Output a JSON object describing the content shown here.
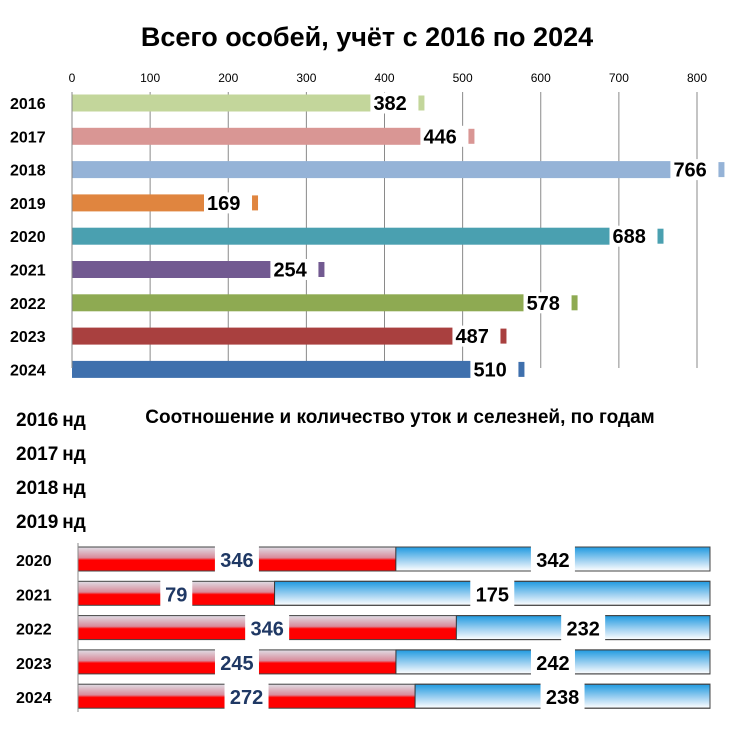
{
  "chart_data": [
    {
      "type": "bar",
      "orientation": "horizontal",
      "title": "Всего особей, учёт с 2016 по 2024",
      "categories": [
        "2016",
        "2017",
        "2018",
        "2019",
        "2020",
        "2021",
        "2022",
        "2023",
        "2024"
      ],
      "values": [
        382,
        446,
        766,
        169,
        688,
        254,
        578,
        487,
        510
      ],
      "colors": [
        "#c3d69b",
        "#d99694",
        "#95b3d7",
        "#e0853f",
        "#4aa0b0",
        "#725a91",
        "#8eaa52",
        "#a9403f",
        "#3f70ad"
      ],
      "xticks": [
        "0",
        "100",
        "200",
        "300",
        "400",
        "500",
        "600",
        "700",
        "800"
      ],
      "xlim": [
        0,
        800
      ],
      "grid": true,
      "axis_position": "top"
    },
    {
      "type": "bar",
      "orientation": "horizontal",
      "stacked": true,
      "title": "Соотношение  и количество уток и селезней, по годам",
      "no_data_rows": [
        {
          "year": "2016",
          "label": "нд"
        },
        {
          "year": "2017",
          "label": "нд"
        },
        {
          "year": "2018",
          "label": "нд"
        },
        {
          "year": "2019",
          "label": "нд"
        }
      ],
      "categories": [
        "2020",
        "2021",
        "2022",
        "2023",
        "2024"
      ],
      "series": [
        {
          "values": [
            346,
            79,
            346,
            245,
            272
          ],
          "color": "#ff0000"
        },
        {
          "values": [
            342,
            175,
            232,
            242,
            238
          ],
          "color": "#4aa8e0"
        }
      ],
      "grid": false
    }
  ]
}
